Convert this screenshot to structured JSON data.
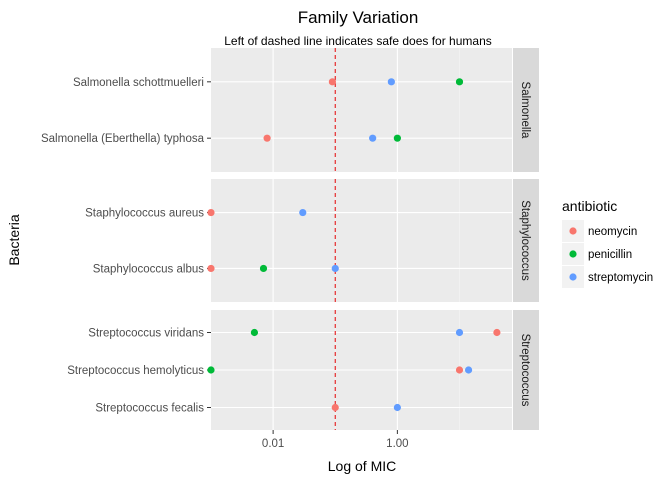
{
  "chart_data": {
    "type": "scatter",
    "title": "Family Variation",
    "subtitle": "Left of dashed line indicates safe does for humans",
    "xlabel": "Log of MIC",
    "ylabel": "Bacteria",
    "x_scale": "log10",
    "xlim": [
      0.001,
      70
    ],
    "x_ticks": [
      {
        "value": 0.01,
        "label": "0.01"
      },
      {
        "value": 1,
        "label": "1.00"
      }
    ],
    "reference_line": {
      "x": 0.1,
      "style": "dashed",
      "color": "#e41a1c"
    },
    "grid": true,
    "legend": {
      "title": "antibiotic",
      "position": "right",
      "items": [
        {
          "name": "neomycin",
          "color": "#F8766D"
        },
        {
          "name": "penicillin",
          "color": "#00BA38"
        },
        {
          "name": "streptomycin",
          "color": "#619CFF"
        }
      ]
    },
    "facets": [
      {
        "label": "Salmonella",
        "rows": [
          {
            "bacteria": "Salmonella schottmuelleri",
            "neomycin": 0.09,
            "penicillin": 10,
            "streptomycin": 0.8
          },
          {
            "bacteria": "Salmonella (Eberthella) typhosa",
            "neomycin": 0.008,
            "penicillin": 1,
            "streptomycin": 0.4
          }
        ]
      },
      {
        "label": "Staphylococcus",
        "rows": [
          {
            "bacteria": "Staphylococcus aureus",
            "neomycin": 0.001,
            "penicillin": null,
            "streptomycin": 0.03
          },
          {
            "bacteria": "Staphylococcus albus",
            "neomycin": 0.001,
            "penicillin": 0.007,
            "streptomycin": 0.1
          }
        ]
      },
      {
        "label": "Streptococcus",
        "rows": [
          {
            "bacteria": "Streptococcus viridans",
            "neomycin": 40,
            "penicillin": 0.005,
            "streptomycin": 10
          },
          {
            "bacteria": "Streptococcus hemolyticus",
            "neomycin": 10,
            "penicillin": 0.001,
            "streptomycin": 14
          },
          {
            "bacteria": "Streptococcus fecalis",
            "neomycin": 0.1,
            "penicillin": null,
            "streptomycin": 1
          }
        ]
      }
    ]
  }
}
